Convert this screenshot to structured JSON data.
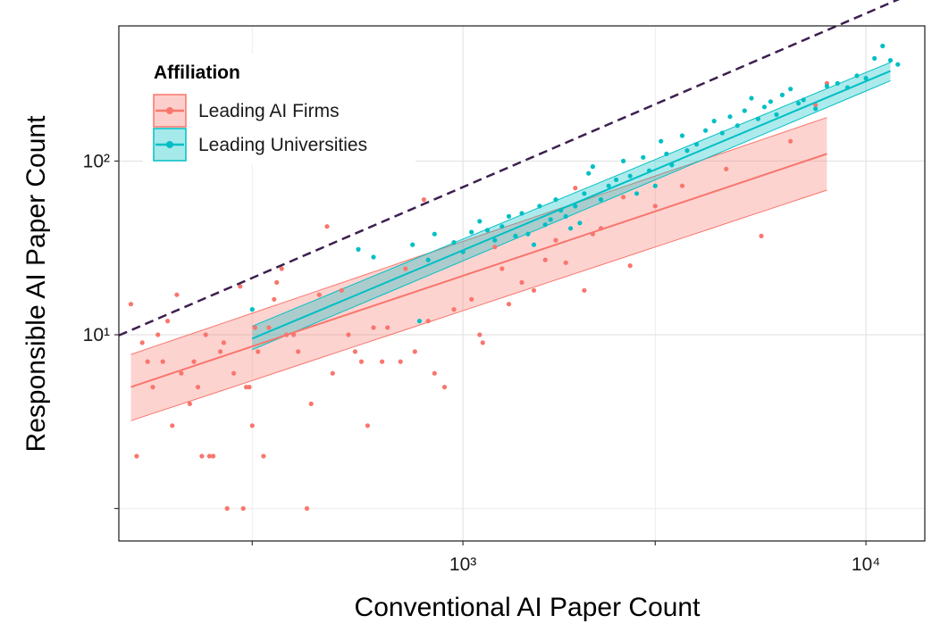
{
  "chart_data": {
    "type": "scatter",
    "title": "",
    "xlabel": "Conventional AI Paper Count",
    "ylabel": "Responsible AI Paper Count",
    "x_scale": "log",
    "y_scale": "log",
    "xlim": [
      140,
      14000
    ],
    "ylim": [
      0.65,
      600
    ],
    "x_ticks": [
      {
        "value": 1000,
        "label": "10³"
      },
      {
        "value": 10000,
        "label": "10⁴"
      }
    ],
    "y_ticks": [
      {
        "value": 10,
        "label": "10¹"
      },
      {
        "value": 100,
        "label": "10²"
      }
    ],
    "x_minor_gridlines": [
      300,
      3000
    ],
    "y_minor_gridlines": [
      1
    ],
    "grid": true,
    "legend": {
      "title": "Affiliation",
      "placement": "top-left",
      "entries": [
        "Leading AI Firms",
        "Leading Universities"
      ]
    },
    "reference_line": {
      "style": "dashed",
      "color": "#3d1f4f",
      "slope": 1.0,
      "intercept_log10": -1.15
    },
    "series": [
      {
        "name": "Leading AI Firms",
        "color": "#F8766D",
        "fit": {
          "x_range": [
            150,
            8000
          ],
          "y_at_start": 5.0,
          "y_at_end": 110,
          "ci_low": [
            3.2,
            68
          ],
          "ci_high": [
            7.7,
            178
          ]
        },
        "points": [
          [
            150,
            15
          ],
          [
            155,
            2
          ],
          [
            160,
            9
          ],
          [
            165,
            7
          ],
          [
            170,
            5
          ],
          [
            175,
            10
          ],
          [
            180,
            7
          ],
          [
            185,
            12
          ],
          [
            190,
            3
          ],
          [
            195,
            17
          ],
          [
            200,
            6
          ],
          [
            210,
            4
          ],
          [
            215,
            7
          ],
          [
            220,
            5
          ],
          [
            225,
            2
          ],
          [
            230,
            10
          ],
          [
            235,
            2
          ],
          [
            240,
            2
          ],
          [
            250,
            8
          ],
          [
            255,
            9
          ],
          [
            260,
            1
          ],
          [
            270,
            6
          ],
          [
            280,
            19
          ],
          [
            285,
            1
          ],
          [
            290,
            5
          ],
          [
            295,
            5
          ],
          [
            300,
            3
          ],
          [
            305,
            11
          ],
          [
            310,
            8
          ],
          [
            320,
            2
          ],
          [
            330,
            11
          ],
          [
            340,
            16
          ],
          [
            345,
            20
          ],
          [
            355,
            24
          ],
          [
            365,
            10
          ],
          [
            380,
            10
          ],
          [
            390,
            8
          ],
          [
            410,
            1
          ],
          [
            420,
            4
          ],
          [
            440,
            17
          ],
          [
            460,
            42
          ],
          [
            475,
            6
          ],
          [
            500,
            18
          ],
          [
            520,
            10
          ],
          [
            540,
            8
          ],
          [
            560,
            7
          ],
          [
            580,
            3
          ],
          [
            600,
            11
          ],
          [
            630,
            7
          ],
          [
            650,
            11
          ],
          [
            700,
            7
          ],
          [
            720,
            24
          ],
          [
            760,
            8
          ],
          [
            800,
            60
          ],
          [
            820,
            12
          ],
          [
            850,
            6
          ],
          [
            900,
            5
          ],
          [
            950,
            14
          ],
          [
            1000,
            30
          ],
          [
            1050,
            16
          ],
          [
            1100,
            10
          ],
          [
            1120,
            9
          ],
          [
            1200,
            32
          ],
          [
            1250,
            24
          ],
          [
            1300,
            15
          ],
          [
            1400,
            20
          ],
          [
            1500,
            18
          ],
          [
            1600,
            27
          ],
          [
            1700,
            35
          ],
          [
            1800,
            26
          ],
          [
            1900,
            70
          ],
          [
            2000,
            18
          ],
          [
            2100,
            38
          ],
          [
            2200,
            41
          ],
          [
            2500,
            62
          ],
          [
            2600,
            25
          ],
          [
            3000,
            55
          ],
          [
            3500,
            72
          ],
          [
            4500,
            90
          ],
          [
            5500,
            37
          ],
          [
            6500,
            130
          ],
          [
            7500,
            210
          ],
          [
            8000,
            280
          ]
        ]
      },
      {
        "name": "Leading Universities",
        "color": "#00BFC4",
        "fit": {
          "x_range": [
            300,
            11500
          ],
          "y_at_start": 9.5,
          "y_at_end": 330,
          "ci_low": [
            8.2,
            290
          ],
          "ci_high": [
            11.2,
            370
          ]
        },
        "points": [
          [
            300,
            14
          ],
          [
            550,
            31
          ],
          [
            600,
            28
          ],
          [
            750,
            33
          ],
          [
            780,
            12
          ],
          [
            820,
            27
          ],
          [
            850,
            38
          ],
          [
            950,
            34
          ],
          [
            1000,
            30
          ],
          [
            1050,
            39
          ],
          [
            1100,
            45
          ],
          [
            1150,
            40
          ],
          [
            1200,
            35
          ],
          [
            1250,
            42
          ],
          [
            1300,
            48
          ],
          [
            1350,
            37
          ],
          [
            1400,
            50
          ],
          [
            1450,
            38
          ],
          [
            1500,
            33
          ],
          [
            1550,
            55
          ],
          [
            1600,
            43
          ],
          [
            1650,
            46
          ],
          [
            1700,
            60
          ],
          [
            1750,
            52
          ],
          [
            1800,
            48
          ],
          [
            1850,
            41
          ],
          [
            1900,
            55
          ],
          [
            1950,
            44
          ],
          [
            2000,
            65
          ],
          [
            2050,
            85
          ],
          [
            2100,
            93
          ],
          [
            2200,
            60
          ],
          [
            2300,
            72
          ],
          [
            2400,
            78
          ],
          [
            2500,
            100
          ],
          [
            2600,
            82
          ],
          [
            2700,
            65
          ],
          [
            2800,
            105
          ],
          [
            2900,
            88
          ],
          [
            3000,
            72
          ],
          [
            3100,
            130
          ],
          [
            3200,
            110
          ],
          [
            3300,
            95
          ],
          [
            3500,
            140
          ],
          [
            3600,
            115
          ],
          [
            3800,
            125
          ],
          [
            4000,
            150
          ],
          [
            4200,
            170
          ],
          [
            4400,
            145
          ],
          [
            4600,
            180
          ],
          [
            4800,
            160
          ],
          [
            5000,
            195
          ],
          [
            5200,
            230
          ],
          [
            5400,
            175
          ],
          [
            5600,
            205
          ],
          [
            5800,
            220
          ],
          [
            6000,
            185
          ],
          [
            6200,
            240
          ],
          [
            6500,
            260
          ],
          [
            6800,
            215
          ],
          [
            7000,
            225
          ],
          [
            7500,
            200
          ],
          [
            8000,
            270
          ],
          [
            8500,
            280
          ],
          [
            9000,
            265
          ],
          [
            9500,
            310
          ],
          [
            10000,
            300
          ],
          [
            10500,
            390
          ],
          [
            11000,
            460
          ],
          [
            11500,
            380
          ],
          [
            12000,
            360
          ]
        ]
      }
    ]
  }
}
